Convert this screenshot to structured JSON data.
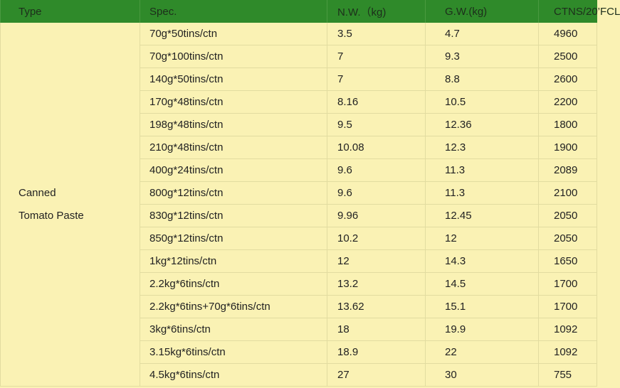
{
  "headers": [
    "Type",
    "Spec.",
    "N.W.（kg)",
    "G.W.(kg)",
    "CTNS/20’FCL"
  ],
  "type_lines": [
    "Canned",
    "Tomato Paste"
  ],
  "rows": [
    [
      "70g*50tins/ctn",
      "3.5",
      "4.7",
      "4960"
    ],
    [
      "70g*100tins/ctn",
      "7",
      "9.3",
      "2500"
    ],
    [
      "140g*50tins/ctn",
      "7",
      "8.8",
      "2600"
    ],
    [
      "170g*48tins/ctn",
      "8.16",
      "10.5",
      "2200"
    ],
    [
      "198g*48tins/ctn",
      "9.5",
      "12.36",
      "1800"
    ],
    [
      "210g*48tins/ctn",
      "10.08",
      "12.3",
      "1900"
    ],
    [
      "400g*24tins/ctn",
      "9.6",
      "11.3",
      "2089"
    ],
    [
      "800g*12tins/ctn",
      "9.6",
      "11.3",
      "2100"
    ],
    [
      "830g*12tins/ctn",
      "9.96",
      "12.45",
      "2050"
    ],
    [
      "850g*12tins/ctn",
      "10.2",
      "12",
      "2050"
    ],
    [
      "1kg*12tins/ctn",
      "12",
      "14.3",
      "1650"
    ],
    [
      "2.2kg*6tins/ctn",
      "13.2",
      "14.5",
      "1700"
    ],
    [
      "2.2kg*6tins+70g*6tins/ctn",
      "13.62",
      "15.1",
      "1700"
    ],
    [
      "3kg*6tins/ctn",
      "18",
      "19.9",
      "1092"
    ],
    [
      "3.15kg*6tins/ctn",
      "18.9",
      "22",
      "1092"
    ],
    [
      "4.5kg*6tins/ctn",
      "27",
      "30",
      "755"
    ]
  ]
}
